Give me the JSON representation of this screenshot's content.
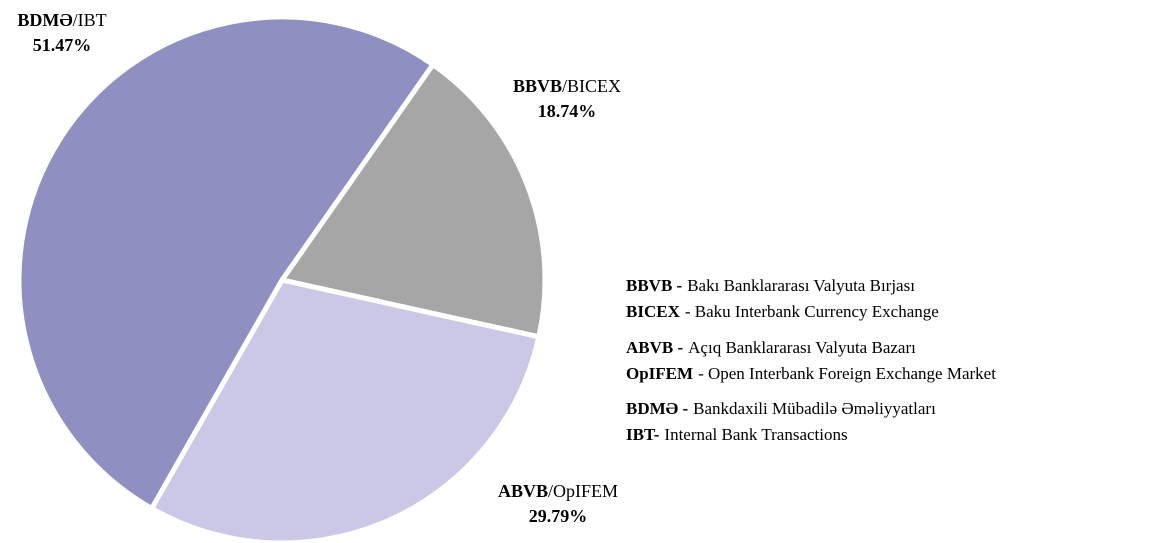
{
  "chart_data": {
    "type": "pie",
    "labels": [
      {
        "bold": "BBVB",
        "rest": "/BICEX"
      },
      {
        "bold": "ABVB",
        "rest": "/OpIFEM"
      },
      {
        "bold": "BDMƏ",
        "rest": "/IBT"
      }
    ],
    "values": [
      18.74,
      29.79,
      51.47
    ],
    "value_labels": [
      "18.74%",
      "29.79%",
      "51.47%"
    ],
    "colors": [
      "#a6a6a6",
      "#cac8e6",
      "#8f8fc2"
    ],
    "notes": [
      {
        "term": "BBVB -",
        "text": "Bakı Banklararası Valyuta Bırjası"
      },
      {
        "term": "BICEX",
        "text": "- Baku Interbank Currency Exchange"
      },
      {
        "term": "ABVB -",
        "text": "Açıq Banklararası Valyuta Bazarı"
      },
      {
        "term": "OpIFEM",
        "text": "- Open Interbank Foreign Exchange Market"
      },
      {
        "term": "BDMƏ -",
        "text": "Bankdaxili Mübadilə Əməliyyatları"
      },
      {
        "term": "IBT-",
        "text": "Internal Bank Transactions"
      }
    ]
  }
}
